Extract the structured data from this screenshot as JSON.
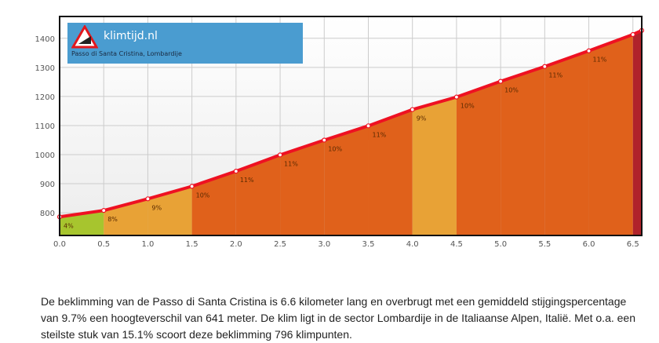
{
  "chart_data": {
    "type": "area",
    "title": "Passo di Santa Cristina, Lombardije",
    "xlabel": "",
    "ylabel": "",
    "x": [
      0.0,
      0.5,
      1.0,
      1.5,
      2.0,
      2.5,
      3.0,
      3.5,
      4.0,
      4.5,
      5.0,
      5.5,
      6.0,
      6.5,
      6.6
    ],
    "elevation": [
      786,
      808,
      848,
      891,
      943,
      999,
      1050,
      1099,
      1155,
      1198,
      1252,
      1303,
      1357,
      1413,
      1427
    ],
    "segment_grades": [
      4,
      8,
      9,
      10,
      11,
      11,
      10,
      11,
      9,
      10,
      10,
      11,
      11,
      15
    ],
    "segment_labels": [
      "4%",
      "8%",
      "9%",
      "10%",
      "11%",
      "11%",
      "10%",
      "11%",
      "9%",
      "10%",
      "10%",
      "11%",
      "11%",
      ""
    ],
    "segment_colors": [
      "#a7c52e",
      "#e8a236",
      "#e8a236",
      "#e0611b",
      "#e0611b",
      "#e0611b",
      "#e0611b",
      "#e0611b",
      "#e8a236",
      "#e0611b",
      "#e0611b",
      "#e0611b",
      "#e0611b",
      "#b0232b"
    ],
    "xticks": [
      "0.0",
      "0.5",
      "1.0",
      "1.5",
      "2.0",
      "2.5",
      "3.0",
      "3.5",
      "4.0",
      "4.5",
      "5.0",
      "5.5",
      "6.0",
      "6.5"
    ],
    "yticks": [
      "800",
      "900",
      "1000",
      "1100",
      "1200",
      "1300",
      "1400"
    ],
    "xlim": [
      0,
      6.6
    ],
    "ylim": [
      722,
      1475
    ],
    "grid": true,
    "line_color": "#ee1122"
  },
  "logo": {
    "name": "klimtijd.nl",
    "subtitle": "Passo di Santa Cristina, Lombardije",
    "badge": "10%"
  },
  "description": "De beklimming van de Passo di Santa Cristina is 6.6 kilometer lang en overbrugt met een gemiddeld stijgingspercentage van 9.7% een hoogteverschil van 641 meter. De klim ligt in de sector Lombardije in de Italiaanse Alpen, Italië. Met o.a. een steilste stuk van 15.1% scoort deze beklimming 796 klimpunten."
}
